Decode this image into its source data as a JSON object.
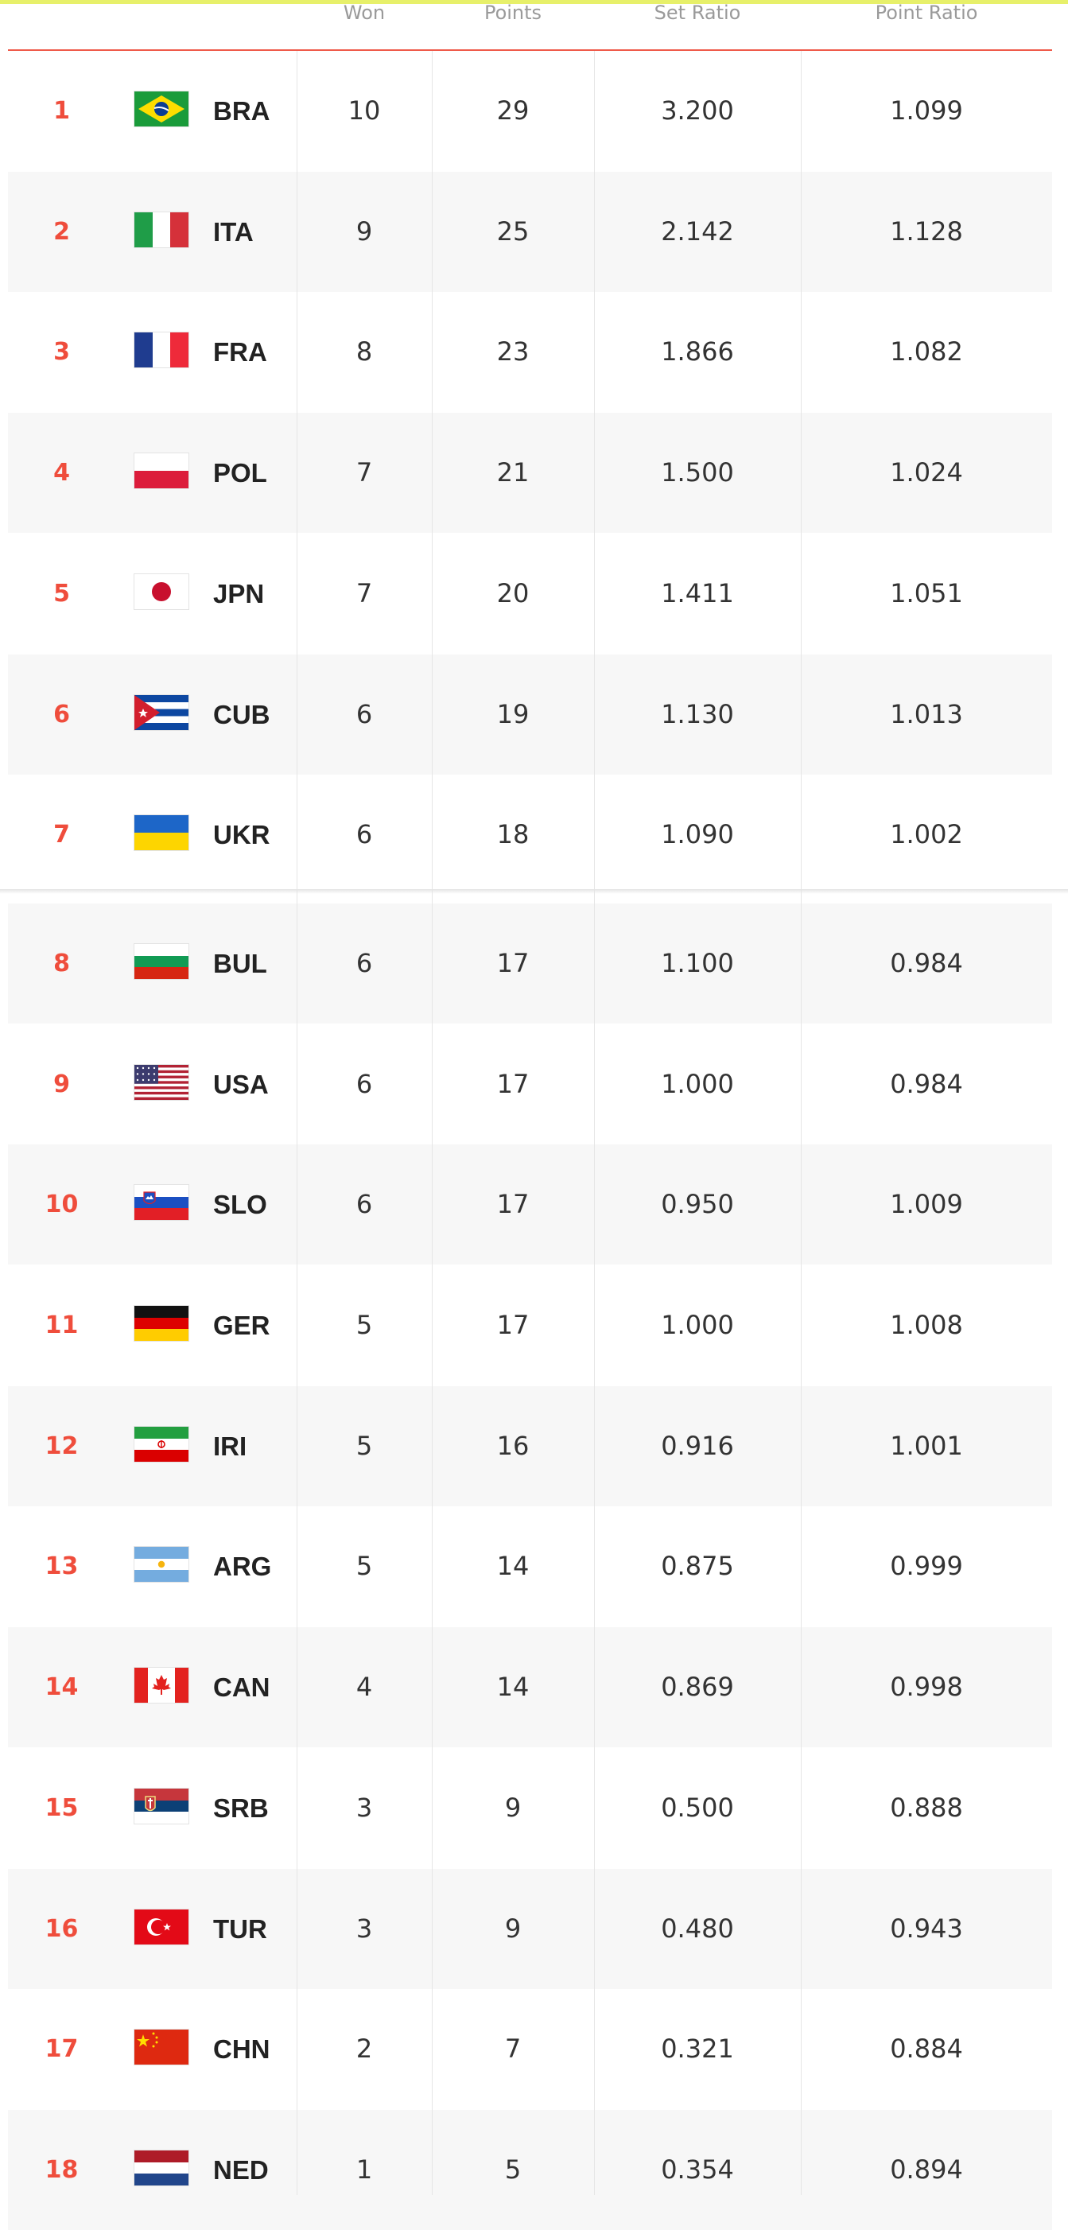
{
  "colors": {
    "accent": "#ef4d3c",
    "stripe": "#f7f7f7",
    "header_text": "#9a9a9a",
    "top_bar": "#e7f06a"
  },
  "header": {
    "won": "Won",
    "points": "Points",
    "set_ratio": "Set Ratio",
    "point_ratio": "Point Ratio"
  },
  "rows": [
    {
      "rank": "1",
      "code": "BRA",
      "flag": "brazil-flag-icon",
      "won": "10",
      "points": "29",
      "set_ratio": "3.200",
      "point_ratio": "1.099"
    },
    {
      "rank": "2",
      "code": "ITA",
      "flag": "italy-flag-icon",
      "won": "9",
      "points": "25",
      "set_ratio": "2.142",
      "point_ratio": "1.128"
    },
    {
      "rank": "3",
      "code": "FRA",
      "flag": "france-flag-icon",
      "won": "8",
      "points": "23",
      "set_ratio": "1.866",
      "point_ratio": "1.082"
    },
    {
      "rank": "4",
      "code": "POL",
      "flag": "poland-flag-icon",
      "won": "7",
      "points": "21",
      "set_ratio": "1.500",
      "point_ratio": "1.024"
    },
    {
      "rank": "5",
      "code": "JPN",
      "flag": "japan-flag-icon",
      "won": "7",
      "points": "20",
      "set_ratio": "1.411",
      "point_ratio": "1.051"
    },
    {
      "rank": "6",
      "code": "CUB",
      "flag": "cuba-flag-icon",
      "won": "6",
      "points": "19",
      "set_ratio": "1.130",
      "point_ratio": "1.013"
    },
    {
      "rank": "7",
      "code": "UKR",
      "flag": "ukraine-flag-icon",
      "won": "6",
      "points": "18",
      "set_ratio": "1.090",
      "point_ratio": "1.002"
    },
    {
      "rank": "8",
      "code": "BUL",
      "flag": "bulgaria-flag-icon",
      "won": "6",
      "points": "17",
      "set_ratio": "1.100",
      "point_ratio": "0.984"
    },
    {
      "rank": "9",
      "code": "USA",
      "flag": "usa-flag-icon",
      "won": "6",
      "points": "17",
      "set_ratio": "1.000",
      "point_ratio": "0.984"
    },
    {
      "rank": "10",
      "code": "SLO",
      "flag": "slovenia-flag-icon",
      "won": "6",
      "points": "17",
      "set_ratio": "0.950",
      "point_ratio": "1.009"
    },
    {
      "rank": "11",
      "code": "GER",
      "flag": "germany-flag-icon",
      "won": "5",
      "points": "17",
      "set_ratio": "1.000",
      "point_ratio": "1.008"
    },
    {
      "rank": "12",
      "code": "IRI",
      "flag": "iran-flag-icon",
      "won": "5",
      "points": "16",
      "set_ratio": "0.916",
      "point_ratio": "1.001"
    },
    {
      "rank": "13",
      "code": "ARG",
      "flag": "argentina-flag-icon",
      "won": "5",
      "points": "14",
      "set_ratio": "0.875",
      "point_ratio": "0.999"
    },
    {
      "rank": "14",
      "code": "CAN",
      "flag": "canada-flag-icon",
      "won": "4",
      "points": "14",
      "set_ratio": "0.869",
      "point_ratio": "0.998"
    },
    {
      "rank": "15",
      "code": "SRB",
      "flag": "serbia-flag-icon",
      "won": "3",
      "points": "9",
      "set_ratio": "0.500",
      "point_ratio": "0.888"
    },
    {
      "rank": "16",
      "code": "TUR",
      "flag": "turkey-flag-icon",
      "won": "3",
      "points": "9",
      "set_ratio": "0.480",
      "point_ratio": "0.943"
    },
    {
      "rank": "17",
      "code": "CHN",
      "flag": "china-flag-icon",
      "won": "2",
      "points": "7",
      "set_ratio": "0.321",
      "point_ratio": "0.884"
    },
    {
      "rank": "18",
      "code": "NED",
      "flag": "netherlands-flag-icon",
      "won": "1",
      "points": "5",
      "set_ratio": "0.354",
      "point_ratio": "0.894"
    }
  ]
}
